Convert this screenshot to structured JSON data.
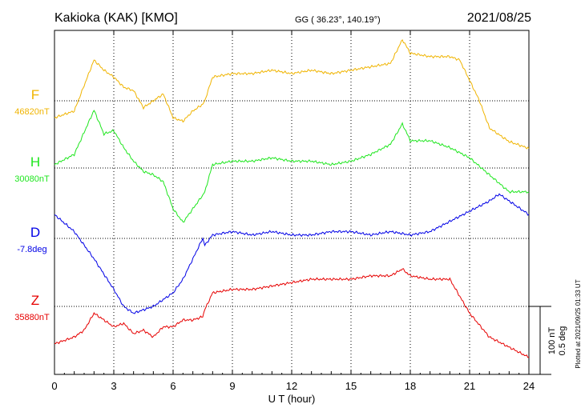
{
  "header": {
    "station": "Kakioka (KAK)  [KMO]",
    "coords": "GG ( 36.23°, 140.19°)",
    "date": "2021/08/25"
  },
  "footer": {
    "plotted": "Plotted at 2021/09/25 01:33 UT"
  },
  "chart_data": {
    "type": "line",
    "xlabel": "U T (hour)",
    "xlim": [
      0,
      24
    ],
    "xticks": [
      "0",
      "3",
      "6",
      "9",
      "12",
      "15",
      "18",
      "21",
      "24"
    ],
    "grid": true,
    "scale_bar": {
      "label1": "100 nT",
      "label2": "0.5 deg"
    },
    "series": [
      {
        "name": "F",
        "baseline_label": "46820nT",
        "color": "#f0b400",
        "x": [
          0,
          1,
          2,
          2.5,
          3,
          3.5,
          4,
          4.5,
          5,
          5.5,
          6,
          6.5,
          7,
          7.5,
          7.6,
          8,
          9,
          10,
          11,
          12,
          13,
          14,
          15,
          16,
          17,
          17.6,
          18,
          19,
          20,
          20.5,
          21,
          21.5,
          22,
          23,
          24
        ],
        "values": [
          -25,
          -15,
          60,
          45,
          35,
          20,
          15,
          -10,
          0,
          10,
          -25,
          -30,
          -15,
          -5,
          0,
          35,
          40,
          40,
          45,
          40,
          45,
          40,
          45,
          50,
          55,
          90,
          70,
          65,
          65,
          60,
          30,
          0,
          -40,
          -60,
          -70
        ]
      },
      {
        "name": "H",
        "baseline_label": "30080nT",
        "color": "#1ee61e",
        "x": [
          0,
          1,
          2,
          2.5,
          3,
          3.5,
          4,
          4.5,
          5,
          5.5,
          6,
          6.5,
          7,
          7.5,
          7.6,
          8,
          9,
          10,
          11,
          12,
          13,
          14,
          15,
          16,
          17,
          17.6,
          18,
          19,
          20,
          21,
          22,
          23,
          24
        ],
        "values": [
          5,
          20,
          85,
          50,
          55,
          30,
          10,
          -5,
          -10,
          -20,
          -60,
          -80,
          -60,
          -40,
          -35,
          5,
          10,
          10,
          15,
          10,
          10,
          5,
          10,
          20,
          35,
          65,
          40,
          40,
          30,
          15,
          -10,
          -35,
          -35
        ]
      },
      {
        "name": "D",
        "baseline_label": "-7.8deg",
        "color": "#0000e6",
        "x": [
          0,
          1,
          2,
          3,
          3.5,
          4,
          5,
          6,
          6.5,
          7,
          7.5,
          7.6,
          8,
          9,
          10,
          11,
          12,
          13,
          14,
          15,
          16,
          17,
          18,
          19,
          20,
          21,
          22,
          22.5,
          23,
          24
        ],
        "values": [
          35,
          10,
          -30,
          -75,
          -100,
          -110,
          -100,
          -80,
          -60,
          -30,
          0,
          -10,
          5,
          10,
          5,
          10,
          5,
          5,
          10,
          10,
          5,
          10,
          5,
          10,
          25,
          40,
          55,
          65,
          55,
          35
        ]
      },
      {
        "name": "Z",
        "baseline_label": "35880nT",
        "color": "#e60000",
        "x": [
          0,
          1,
          1.5,
          2,
          2.5,
          3,
          3.5,
          4,
          4.5,
          5,
          5.5,
          6,
          6.5,
          7,
          7.5,
          7.6,
          8,
          9,
          10,
          11,
          12,
          13,
          14,
          15,
          16,
          17,
          17.6,
          18,
          19,
          20,
          21,
          22,
          23,
          24
        ],
        "values": [
          -55,
          -45,
          -35,
          -10,
          -20,
          -30,
          -25,
          -40,
          -35,
          -45,
          -30,
          -30,
          -20,
          -20,
          -15,
          -5,
          20,
          25,
          25,
          30,
          35,
          40,
          40,
          40,
          45,
          45,
          55,
          45,
          40,
          40,
          -10,
          -45,
          -60,
          -75
        ]
      }
    ]
  }
}
